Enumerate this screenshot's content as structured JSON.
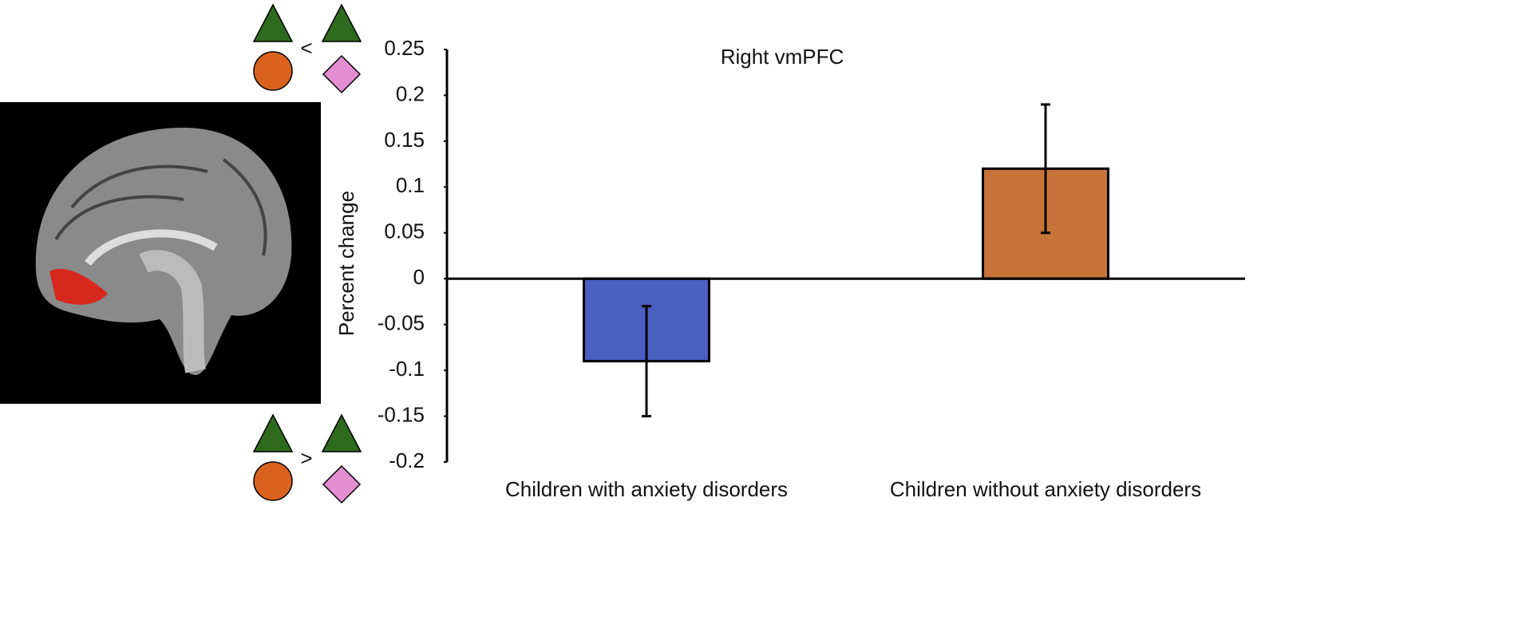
{
  "chart_data": {
    "type": "bar",
    "title": "Right vmPFC",
    "y_label": "Percent change",
    "categories": [
      "Children with anxiety disorders",
      "Children without anxiety disorders"
    ],
    "values": [
      -0.09,
      0.12
    ],
    "errors": [
      0.06,
      0.07
    ],
    "colors": [
      "#4a5fc1",
      "#c8733a"
    ],
    "ylim": [
      -0.2,
      0.25
    ],
    "yticks": [
      0.25,
      0.2,
      0.15,
      0.1,
      0.05,
      0,
      -0.05,
      -0.1,
      -0.15,
      -0.2
    ],
    "annotations": [
      "<",
      ">"
    ]
  }
}
